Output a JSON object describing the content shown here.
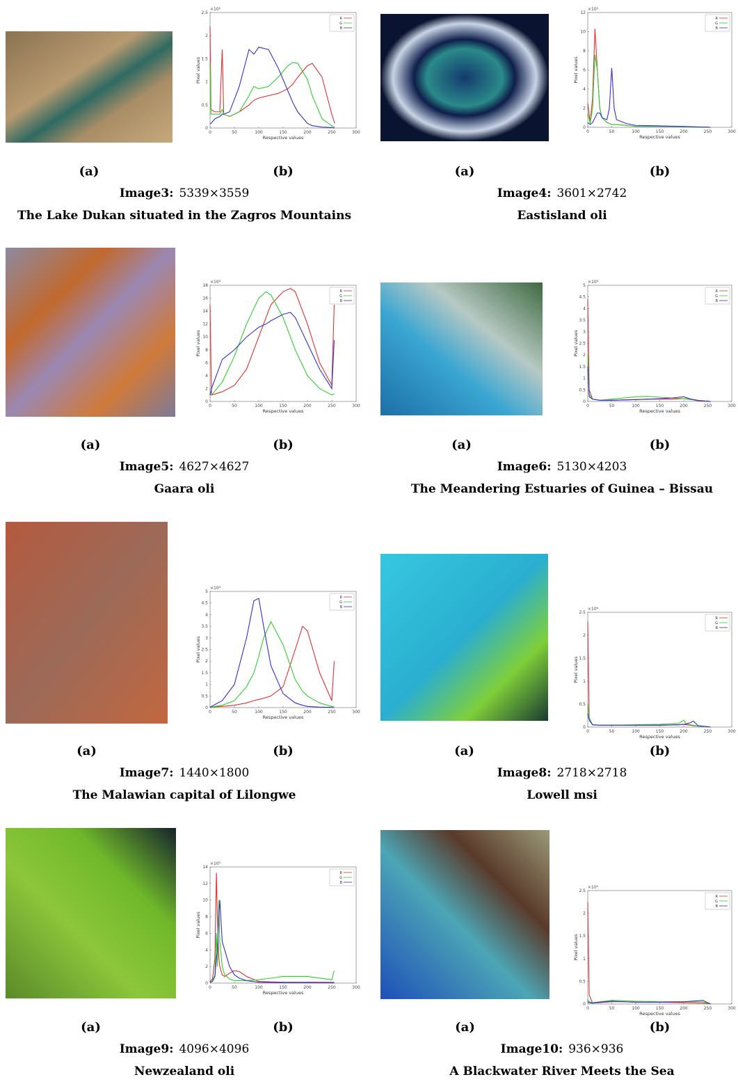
{
  "panels": [
    {
      "label_a": "(a)",
      "label_b": "(b)",
      "caption": {
        "image": "Image3:",
        "size": "5339×3559",
        "title": "The Lake Dukan situated in the Zagros Mountains"
      },
      "chart_data": {
        "type": "line",
        "scale_label": "×10⁵",
        "y_label": "Pixel values",
        "x_label": "Respective values",
        "xlim": [
          0,
          300
        ],
        "xticks": [
          0,
          50,
          100,
          150,
          200,
          250,
          300
        ],
        "ylim": [
          0,
          2.5
        ],
        "yticks": [
          0,
          0.5,
          1,
          1.5,
          2,
          2.5
        ],
        "x": [
          0,
          2,
          10,
          20,
          25,
          28,
          40,
          60,
          80,
          90,
          100,
          120,
          140,
          160,
          170,
          180,
          200,
          210,
          230,
          250,
          256
        ],
        "series": [
          {
            "name": "R",
            "color": "#e03030",
            "values": [
              2.2,
              0.4,
              0.35,
              0.35,
              1.7,
              0.3,
              0.25,
              0.35,
              0.5,
              0.6,
              0.65,
              0.7,
              0.75,
              0.85,
              0.95,
              1.1,
              1.35,
              1.4,
              1.1,
              0.3,
              0.1
            ]
          },
          {
            "name": "G",
            "color": "#30d030",
            "values": [
              1.4,
              0.3,
              0.3,
              0.3,
              0.4,
              0.3,
              0.25,
              0.35,
              0.7,
              0.9,
              0.85,
              0.9,
              1.1,
              1.35,
              1.42,
              1.4,
              1.05,
              0.7,
              0.2,
              0.05,
              0.02
            ]
          },
          {
            "name": "B",
            "color": "#3030d0",
            "values": [
              0.1,
              0.1,
              0.2,
              0.25,
              0.3,
              0.3,
              0.35,
              0.9,
              1.7,
              1.6,
              1.75,
              1.7,
              1.3,
              0.8,
              0.55,
              0.35,
              0.1,
              0.05,
              0.02,
              0.01,
              0
            ]
          }
        ]
      }
    },
    {
      "label_a": "(a)",
      "label_b": "(b)",
      "caption": {
        "image": "Image4:",
        "size": "3601×2742",
        "title": "Eastisland oli"
      },
      "chart_data": {
        "type": "line",
        "scale_label": "×10⁵",
        "y_label": "Pixel values",
        "x_label": "Respective values",
        "xlim": [
          0,
          300
        ],
        "xticks": [
          0,
          50,
          100,
          150,
          200,
          250,
          300
        ],
        "ylim": [
          0,
          12
        ],
        "yticks": [
          0,
          2,
          4,
          6,
          8,
          10,
          12
        ],
        "x": [
          0,
          5,
          10,
          15,
          20,
          25,
          30,
          40,
          45,
          50,
          55,
          60,
          80,
          100,
          150,
          200,
          256
        ],
        "series": [
          {
            "name": "R",
            "color": "#e03030",
            "values": [
              2.5,
              0.5,
              3,
              10.3,
              6,
              2,
              1,
              0.5,
              0.4,
              0.3,
              0.3,
              0.3,
              0.2,
              0.1,
              0.1,
              0.05,
              0
            ]
          },
          {
            "name": "G",
            "color": "#30d030",
            "values": [
              1.5,
              0.4,
              2,
              7.6,
              6,
              2,
              1,
              0.5,
              0.4,
              0.3,
              0.3,
              0.3,
              0.2,
              0.1,
              0.1,
              0.05,
              0
            ]
          },
          {
            "name": "B",
            "color": "#3030d0",
            "values": [
              0.5,
              0.3,
              0.5,
              1,
              1.5,
              1.5,
              1,
              0.8,
              2,
              6.2,
              2,
              0.8,
              0.4,
              0.2,
              0.15,
              0.1,
              0
            ]
          }
        ]
      }
    },
    {
      "label_a": "(a)",
      "label_b": "(b)",
      "caption": {
        "image": "Image5:",
        "size": "4627×4627",
        "title": "Gaara oli"
      },
      "chart_data": {
        "type": "line",
        "scale_label": "×10⁴",
        "y_label": "Pixel values",
        "x_label": "Respective values",
        "xlim": [
          0,
          300
        ],
        "xticks": [
          0,
          50,
          100,
          150,
          200,
          250,
          300
        ],
        "ylim": [
          0,
          18
        ],
        "yticks": [
          0,
          2,
          4,
          6,
          8,
          10,
          12,
          14,
          16,
          18
        ],
        "x": [
          0,
          3,
          25,
          50,
          75,
          100,
          115,
          125,
          150,
          165,
          175,
          200,
          225,
          250,
          255
        ],
        "series": [
          {
            "name": "R",
            "color": "#e03030",
            "values": [
              15,
              1,
              1.5,
              2.5,
              5,
              10,
              13,
              15,
              17,
              17.5,
              17,
              12,
              6,
              2.5,
              15
            ]
          },
          {
            "name": "G",
            "color": "#30d030",
            "values": [
              1,
              1,
              3,
              7,
              12,
              16,
              17,
              16.5,
              13,
              10,
              8,
              4,
              2,
              1,
              1.2
            ]
          },
          {
            "name": "B",
            "color": "#3030d0",
            "values": [
              1,
              2,
              6.5,
              8,
              10,
              11.5,
              12,
              12.5,
              13.5,
              13.8,
              13,
              9,
              5,
              2,
              9.5
            ]
          }
        ]
      }
    },
    {
      "label_a": "(a)",
      "label_b": "(b)",
      "caption": {
        "image": "Image6:",
        "size": "5130×4203",
        "title": "The Meandering Estuaries of Guinea – Bissau"
      },
      "chart_data": {
        "type": "line",
        "scale_label": "×10⁶",
        "y_label": "Pixel values",
        "x_label": "Respective values",
        "xlim": [
          0,
          300
        ],
        "xticks": [
          0,
          50,
          100,
          150,
          200,
          250,
          300
        ],
        "ylim": [
          0,
          5
        ],
        "yticks": [
          0,
          0.5,
          1,
          1.5,
          2,
          2.5,
          3,
          3.5,
          4,
          4.5,
          5
        ],
        "x": [
          0,
          3,
          10,
          25,
          50,
          100,
          125,
          150,
          175,
          200,
          215,
          230,
          256
        ],
        "series": [
          {
            "name": "R",
            "color": "#e03030",
            "values": [
              4.4,
              0.5,
              0.1,
              0.05,
              0.05,
              0.08,
              0.1,
              0.1,
              0.1,
              0.12,
              0.1,
              0.05,
              0
            ]
          },
          {
            "name": "G",
            "color": "#30d030",
            "values": [
              2,
              0.3,
              0.1,
              0.05,
              0.1,
              0.2,
              0.22,
              0.18,
              0.15,
              0.12,
              0.08,
              0.03,
              0
            ]
          },
          {
            "name": "B",
            "color": "#3030d0",
            "values": [
              1.5,
              0.2,
              0.1,
              0.05,
              0.05,
              0.08,
              0.1,
              0.12,
              0.15,
              0.2,
              0.1,
              0.03,
              0
            ]
          }
        ]
      }
    },
    {
      "label_a": "(a)",
      "label_b": "(b)",
      "caption": {
        "image": "Image7:",
        "size": "1440×1800",
        "title": "The Malawian capital of Lilongwe"
      },
      "chart_data": {
        "type": "line",
        "scale_label": "×10⁴",
        "y_label": "Pixel values",
        "x_label": "Respective values",
        "xlim": [
          0,
          300
        ],
        "xticks": [
          0,
          50,
          100,
          150,
          200,
          250,
          300
        ],
        "ylim": [
          0,
          5
        ],
        "yticks": [
          0,
          0.5,
          1,
          1.5,
          2,
          2.5,
          3,
          3.5,
          4,
          4.5,
          5
        ],
        "x": [
          0,
          25,
          50,
          75,
          90,
          100,
          110,
          125,
          150,
          175,
          190,
          200,
          225,
          250,
          255
        ],
        "series": [
          {
            "name": "R",
            "color": "#e03030",
            "values": [
              0.02,
              0.05,
              0.1,
              0.2,
              0.3,
              0.35,
              0.4,
              0.5,
              0.9,
              2.5,
              3.5,
              3.3,
              1.5,
              0.3,
              2
            ]
          },
          {
            "name": "G",
            "color": "#30d030",
            "values": [
              0.02,
              0.1,
              0.3,
              0.9,
              1.5,
              2.2,
              3,
              3.7,
              2.7,
              1.2,
              0.7,
              0.5,
              0.2,
              0.05,
              0.05
            ]
          },
          {
            "name": "B",
            "color": "#3030d0",
            "values": [
              0.02,
              0.3,
              1,
              3,
              4.6,
              4.7,
              3.5,
              1.8,
              0.6,
              0.2,
              0.1,
              0.05,
              0.02,
              0.01,
              0
            ]
          }
        ]
      }
    },
    {
      "label_a": "(a)",
      "label_b": "(b)",
      "caption": {
        "image": "Image8:",
        "size": "2718×2718",
        "title": "Lowell msi"
      },
      "chart_data": {
        "type": "line",
        "scale_label": "×10⁶",
        "y_label": "Pixel values",
        "x_label": "Respective values",
        "xlim": [
          0,
          300
        ],
        "xticks": [
          0,
          50,
          100,
          150,
          200,
          250,
          300
        ],
        "ylim": [
          0,
          2.5
        ],
        "yticks": [
          0,
          0.5,
          1,
          1.5,
          2,
          2.5
        ],
        "x": [
          0,
          3,
          10,
          25,
          50,
          100,
          150,
          190,
          200,
          205,
          215,
          220,
          230,
          256
        ],
        "series": [
          {
            "name": "R",
            "color": "#e03030",
            "values": [
              2.3,
              0.2,
              0.05,
              0.04,
              0.04,
              0.04,
              0.04,
              0.05,
              0.06,
              0.05,
              0.04,
              0.03,
              0.02,
              0
            ]
          },
          {
            "name": "G",
            "color": "#30d030",
            "values": [
              0.5,
              0.2,
              0.05,
              0.04,
              0.04,
              0.05,
              0.06,
              0.08,
              0.15,
              0.07,
              0.05,
              0.04,
              0.02,
              0
            ]
          },
          {
            "name": "B",
            "color": "#3030d0",
            "values": [
              0.3,
              0.15,
              0.05,
              0.04,
              0.04,
              0.04,
              0.04,
              0.05,
              0.06,
              0.07,
              0.1,
              0.13,
              0.03,
              0
            ]
          }
        ]
      }
    },
    {
      "label_a": "(a)",
      "label_b": "(b)",
      "caption": {
        "image": "Image9:",
        "size": "4096×4096",
        "title": "Newzealand oli"
      },
      "chart_data": {
        "type": "line",
        "scale_label": "×10⁵",
        "y_label": "Pixel values",
        "x_label": "Respective values",
        "xlim": [
          0,
          300
        ],
        "xticks": [
          0,
          50,
          100,
          150,
          200,
          250,
          300
        ],
        "ylim": [
          0,
          14
        ],
        "yticks": [
          0,
          2,
          4,
          6,
          8,
          10,
          12,
          14
        ],
        "x": [
          0,
          5,
          10,
          13,
          15,
          18,
          20,
          25,
          30,
          40,
          50,
          60,
          75,
          100,
          150,
          200,
          250,
          255
        ],
        "series": [
          {
            "name": "R",
            "color": "#e03030",
            "values": [
              0.2,
              0.5,
              3,
              13.3,
              8,
              3,
              2,
              1,
              0.8,
              1.2,
              1.5,
              1.4,
              0.8,
              0.2,
              0.1,
              0.1,
              0.1,
              0.1
            ]
          },
          {
            "name": "G",
            "color": "#30d030",
            "values": [
              0.1,
              0.3,
              1,
              6,
              2,
              10,
              5,
              2,
              1,
              0.5,
              0.3,
              0.3,
              0.3,
              0.4,
              0.8,
              0.8,
              0.4,
              1.5
            ]
          },
          {
            "name": "B",
            "color": "#3030d0",
            "values": [
              0.1,
              0.2,
              0.8,
              3,
              4,
              8,
              10,
              5,
              4,
              2,
              1,
              0.6,
              0.3,
              0.1,
              0.05,
              0.05,
              0.02,
              0
            ]
          }
        ]
      }
    },
    {
      "label_a": "(a)",
      "label_b": "(b)",
      "caption": {
        "image": "Image10:",
        "size": "936×936",
        "title": "A Blackwater River Meets the Sea"
      },
      "chart_data": {
        "type": "line",
        "scale_label": "×10⁵",
        "y_label": "Pixel values",
        "x_label": "Respective values",
        "xlim": [
          0,
          300
        ],
        "xticks": [
          0,
          50,
          100,
          150,
          200,
          250,
          300
        ],
        "ylim": [
          0,
          2.5
        ],
        "yticks": [
          0,
          0.5,
          1,
          1.5,
          2,
          2.5
        ],
        "x": [
          0,
          3,
          10,
          25,
          50,
          75,
          100,
          150,
          200,
          240,
          250,
          256
        ],
        "series": [
          {
            "name": "R",
            "color": "#e03030",
            "values": [
              2.25,
              0.2,
              0.02,
              0.03,
              0.05,
              0.05,
              0.04,
              0.04,
              0.03,
              0.02,
              0.01,
              0
            ]
          },
          {
            "name": "G",
            "color": "#30d030",
            "values": [
              0.1,
              0.05,
              0.03,
              0.05,
              0.08,
              0.07,
              0.06,
              0.05,
              0.05,
              0.05,
              0.02,
              0
            ]
          },
          {
            "name": "B",
            "color": "#3030d0",
            "values": [
              0.05,
              0.03,
              0.02,
              0.04,
              0.06,
              0.05,
              0.04,
              0.04,
              0.05,
              0.08,
              0.03,
              0
            ]
          }
        ]
      }
    }
  ]
}
